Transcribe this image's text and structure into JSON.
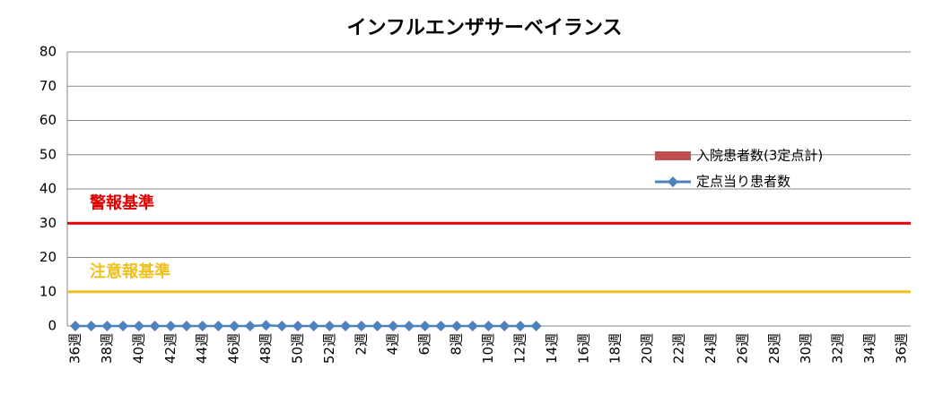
{
  "chart_data": {
    "type": "line",
    "title": "インフルエンザサーベイランス",
    "categories": [
      "36週",
      null,
      "38週",
      null,
      "40週",
      null,
      "42週",
      null,
      "44週",
      null,
      "46週",
      null,
      "48週",
      null,
      "50週",
      null,
      "52週",
      null,
      "2週",
      null,
      "4週",
      null,
      "6週",
      null,
      "8週",
      null,
      "10週",
      null,
      "12週",
      null,
      "14週",
      null,
      "16週",
      null,
      "18週",
      null,
      "20週",
      null,
      "22週",
      null,
      "24週",
      null,
      "26週",
      null,
      "28週",
      null,
      "30週",
      null,
      "32週",
      null,
      "34週",
      null,
      "36週"
    ],
    "series": [
      {
        "name": "入院患者数(3定点計)",
        "type": "bar",
        "color": "#c0504d",
        "values": [
          null,
          null,
          null,
          null,
          null,
          null,
          null,
          null,
          null,
          null,
          null,
          null,
          null,
          null,
          null,
          null,
          null,
          null,
          null,
          null,
          null,
          null,
          null,
          null,
          null,
          null,
          null,
          null,
          null,
          null,
          null,
          null,
          null,
          null,
          null,
          null,
          null,
          null,
          null,
          null,
          null,
          null,
          null,
          null,
          null,
          null,
          null,
          null,
          null,
          null,
          null,
          null,
          null
        ]
      },
      {
        "name": "定点当り患者数",
        "type": "line",
        "color": "#4f81bd",
        "values": [
          0,
          0,
          0,
          0,
          0,
          0,
          0,
          0,
          0,
          0,
          0,
          0,
          0.2,
          0,
          0,
          0,
          0,
          0,
          0,
          0,
          0,
          0,
          0,
          0,
          0,
          0,
          0,
          0,
          0,
          0,
          null,
          null,
          null,
          null,
          null,
          null,
          null,
          null,
          null,
          null,
          null,
          null,
          null,
          null,
          null,
          null,
          null,
          null,
          null,
          null,
          null,
          null,
          null
        ]
      }
    ],
    "reference_lines": [
      {
        "label": "警報基準",
        "value": 30,
        "color": "#e00000"
      },
      {
        "label": "注意報基準",
        "value": 10,
        "color": "#f0c020"
      }
    ],
    "ylim": [
      0,
      80
    ],
    "yticks": [
      0,
      10,
      20,
      30,
      40,
      50,
      60,
      70,
      80
    ],
    "grid": true
  }
}
